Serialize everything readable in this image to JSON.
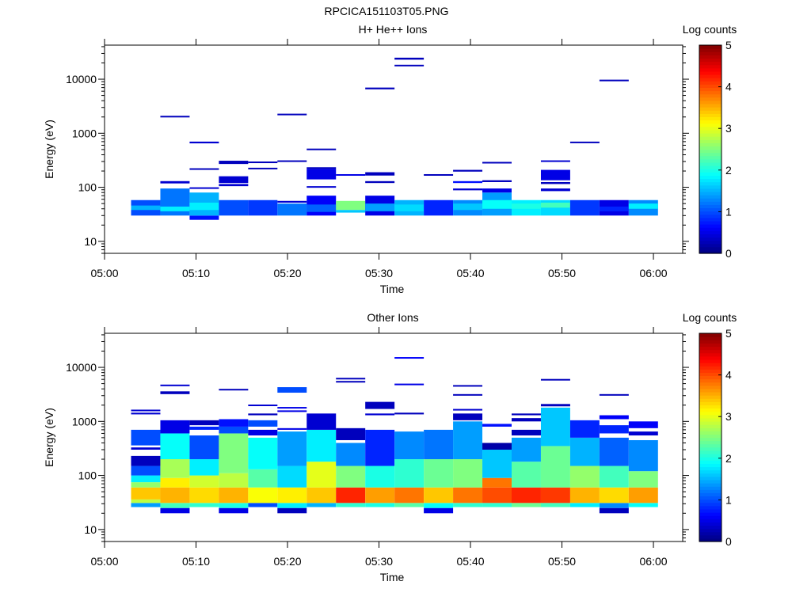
{
  "figure_title": "RPCICA151103T05.PNG",
  "chart_data": [
    {
      "type": "heatmap",
      "title": "H+ He++ Ions",
      "xlabel": "Time",
      "ylabel": "Energy (eV)",
      "colorbar_label": "Log counts",
      "colorbar_ticks": [
        "0",
        "1",
        "2",
        "3",
        "4",
        "5"
      ],
      "colorbar_range": [
        0,
        5
      ],
      "x_ticks": [
        "05:00",
        "05:10",
        "05:20",
        "05:30",
        "05:40",
        "05:50",
        "06:00"
      ],
      "x_range_minutes": [
        0,
        63.2
      ],
      "y_scale": "log",
      "y_ticks": [
        "10",
        "100",
        "1000",
        "10000"
      ],
      "y_range": [
        6,
        42700
      ],
      "column_width_minutes": 3.2,
      "column_start_minutes": 2.9,
      "columns": [
        [
          [
            30,
            58,
            1.0
          ],
          [
            38,
            46,
            1.5
          ]
        ],
        [
          [
            30,
            95,
            1.2
          ],
          [
            36,
            44,
            1.8
          ],
          [
            118,
            130,
            0.4
          ],
          [
            2000,
            2100,
            0.3
          ]
        ],
        [
          [
            25,
            30,
            0.7
          ],
          [
            30,
            80,
            1.5
          ],
          [
            38,
            52,
            1.8
          ],
          [
            95,
            100,
            0.4
          ],
          [
            215,
            225,
            0.3
          ],
          [
            650,
            700,
            0.4
          ]
        ],
        [
          [
            30,
            58,
            1.0
          ],
          [
            105,
            115,
            0.4
          ],
          [
            120,
            160,
            0.4
          ],
          [
            270,
            310,
            0.3
          ]
        ],
        [
          [
            30,
            58,
            0.9
          ],
          [
            220,
            230,
            0.3
          ],
          [
            280,
            300,
            0.3
          ]
        ],
        [
          [
            30,
            50,
            1.2
          ],
          [
            52,
            56,
            0.4
          ],
          [
            300,
            315,
            0.3
          ],
          [
            2150,
            2300,
            0.3
          ]
        ],
        [
          [
            30,
            70,
            0.6
          ],
          [
            35,
            48,
            1.1
          ],
          [
            100,
            105,
            0.4
          ],
          [
            140,
            220,
            0.5
          ],
          [
            225,
            235,
            0.3
          ],
          [
            500,
            520,
            0.3
          ]
        ],
        [
          [
            38,
            56,
            2.5
          ],
          [
            34,
            38,
            1.6
          ],
          [
            170,
            175,
            0.5
          ]
        ],
        [
          [
            30,
            70,
            0.5
          ],
          [
            36,
            50,
            1.4
          ],
          [
            120,
            130,
            0.3
          ],
          [
            165,
            190,
            0.3
          ],
          [
            6500,
            7000,
            0.3
          ]
        ],
        [
          [
            30,
            58,
            1.5
          ],
          [
            36,
            48,
            1.7
          ],
          [
            17500,
            18500,
            0.3
          ],
          [
            23000,
            25000,
            0.3
          ]
        ],
        [
          [
            30,
            58,
            0.8
          ],
          [
            170,
            175,
            0.3
          ]
        ],
        [
          [
            30,
            58,
            1.3
          ],
          [
            38,
            50,
            1.6
          ],
          [
            88,
            95,
            0.4
          ],
          [
            120,
            130,
            0.7
          ],
          [
            195,
            210,
            0.3
          ]
        ],
        [
          [
            30,
            80,
            1.4
          ],
          [
            40,
            58,
            1.9
          ],
          [
            80,
            95,
            0.5
          ],
          [
            125,
            135,
            0.3
          ],
          [
            280,
            295,
            0.3
          ]
        ],
        [
          [
            30,
            58,
            1.8
          ],
          [
            40,
            50,
            2.0
          ]
        ],
        [
          [
            30,
            58,
            1.7
          ],
          [
            42,
            52,
            2.2
          ],
          [
            85,
            95,
            0.4
          ],
          [
            115,
            125,
            0.3
          ],
          [
            135,
            210,
            0.5
          ],
          [
            300,
            315,
            0.4
          ]
        ],
        [
          [
            30,
            58,
            0.9
          ],
          [
            660,
            700,
            0.3
          ]
        ],
        [
          [
            30,
            58,
            0.5
          ],
          [
            36,
            44,
            0.8
          ],
          [
            9400,
            9800,
            0.3
          ]
        ],
        [
          [
            30,
            58,
            1.3
          ],
          [
            40,
            50,
            1.8
          ]
        ]
      ]
    },
    {
      "type": "heatmap",
      "title": "Other Ions",
      "xlabel": "Time",
      "ylabel": "Energy (eV)",
      "colorbar_label": "Log counts",
      "colorbar_ticks": [
        "0",
        "1",
        "2",
        "3",
        "4",
        "5"
      ],
      "colorbar_range": [
        0,
        5
      ],
      "x_ticks": [
        "05:00",
        "05:10",
        "05:20",
        "05:30",
        "05:40",
        "05:50",
        "06:00"
      ],
      "x_range_minutes": [
        0,
        63.2
      ],
      "y_scale": "log",
      "y_ticks": [
        "10",
        "100",
        "1000",
        "10000"
      ],
      "y_range": [
        6,
        42700
      ],
      "column_width_minutes": 3.2,
      "column_start_minutes": 2.9,
      "columns": [
        [
          [
            26,
            31,
            1.4
          ],
          [
            31,
            36,
            2.8
          ],
          [
            36,
            60,
            3.4
          ],
          [
            60,
            75,
            2.6
          ],
          [
            75,
            100,
            1.8
          ],
          [
            100,
            150,
            1.0
          ],
          [
            150,
            230,
            0.3
          ],
          [
            300,
            330,
            0.4
          ],
          [
            360,
            700,
            1.0
          ],
          [
            1350,
            1450,
            0.4
          ],
          [
            1550,
            1650,
            0.4
          ]
        ],
        [
          [
            20,
            25,
            0.5
          ],
          [
            25,
            31,
            2.2
          ],
          [
            31,
            60,
            3.5
          ],
          [
            60,
            90,
            3.2
          ],
          [
            90,
            200,
            2.7
          ],
          [
            200,
            600,
            1.9
          ],
          [
            600,
            1050,
            0.5
          ],
          [
            3200,
            3600,
            0.3
          ],
          [
            4500,
            4800,
            0.4
          ]
        ],
        [
          [
            26,
            31,
            2.1
          ],
          [
            31,
            60,
            3.3
          ],
          [
            60,
            100,
            2.9
          ],
          [
            100,
            200,
            1.8
          ],
          [
            200,
            550,
            1.0
          ],
          [
            700,
            800,
            0.8
          ],
          [
            850,
            1050,
            0.3
          ]
        ],
        [
          [
            20,
            25,
            0.5
          ],
          [
            25,
            31,
            2.0
          ],
          [
            31,
            60,
            3.5
          ],
          [
            60,
            110,
            2.8
          ],
          [
            110,
            600,
            2.5
          ],
          [
            600,
            800,
            1.0
          ],
          [
            800,
            1100,
            0.7
          ],
          [
            3800,
            4000,
            0.3
          ]
        ],
        [
          [
            26,
            31,
            1.0
          ],
          [
            31,
            60,
            3.1
          ],
          [
            60,
            130,
            2.3
          ],
          [
            130,
            500,
            1.9
          ],
          [
            550,
            700,
            0.5
          ],
          [
            800,
            1050,
            1.0
          ],
          [
            1300,
            1400,
            0.3
          ],
          [
            1950,
            2050,
            0.4
          ]
        ],
        [
          [
            20,
            25,
            0.3
          ],
          [
            25,
            31,
            1.8
          ],
          [
            31,
            60,
            3.2
          ],
          [
            60,
            150,
            1.7
          ],
          [
            150,
            650,
            1.4
          ],
          [
            700,
            750,
            0.5
          ],
          [
            1500,
            1600,
            0.5
          ],
          [
            1750,
            1850,
            0.5
          ],
          [
            3400,
            4300,
            1.0
          ]
        ],
        [
          [
            26,
            31,
            1.5
          ],
          [
            31,
            60,
            3.4
          ],
          [
            60,
            180,
            3.0
          ],
          [
            180,
            700,
            1.8
          ],
          [
            700,
            1400,
            0.4
          ]
        ],
        [
          [
            26,
            31,
            2.1
          ],
          [
            31,
            60,
            4.2
          ],
          [
            60,
            150,
            2.5
          ],
          [
            150,
            400,
            1.3
          ],
          [
            450,
            750,
            0.3
          ],
          [
            5300,
            5600,
            0.3
          ],
          [
            6000,
            6400,
            0.3
          ]
        ],
        [
          [
            26,
            31,
            2.0
          ],
          [
            31,
            60,
            3.6
          ],
          [
            60,
            150,
            2.0
          ],
          [
            150,
            700,
            0.8
          ],
          [
            1300,
            1400,
            0.4
          ],
          [
            1700,
            2300,
            0.3
          ]
        ],
        [
          [
            26,
            31,
            2.3
          ],
          [
            31,
            60,
            3.8
          ],
          [
            60,
            200,
            2.1
          ],
          [
            200,
            650,
            1.3
          ],
          [
            1350,
            1450,
            0.3
          ],
          [
            4700,
            5000,
            0.5
          ],
          [
            14800,
            15500,
            0.6
          ]
        ],
        [
          [
            20,
            25,
            0.5
          ],
          [
            25,
            31,
            1.9
          ],
          [
            31,
            60,
            3.4
          ],
          [
            60,
            200,
            2.4
          ],
          [
            200,
            700,
            1.2
          ]
        ],
        [
          [
            26,
            31,
            2.1
          ],
          [
            31,
            60,
            3.8
          ],
          [
            60,
            200,
            2.5
          ],
          [
            200,
            1000,
            1.4
          ],
          [
            1050,
            1400,
            0.3
          ],
          [
            1600,
            1700,
            0.4
          ],
          [
            3000,
            3200,
            0.3
          ],
          [
            4400,
            4700,
            0.3
          ]
        ],
        [
          [
            26,
            31,
            2.1
          ],
          [
            31,
            60,
            4.0
          ],
          [
            60,
            90,
            3.8
          ],
          [
            90,
            300,
            1.6
          ],
          [
            300,
            400,
            0.2
          ],
          [
            800,
            900,
            0.7
          ]
        ],
        [
          [
            26,
            31,
            2.4
          ],
          [
            31,
            60,
            4.2
          ],
          [
            60,
            180,
            2.3
          ],
          [
            180,
            500,
            1.4
          ],
          [
            550,
            700,
            0.3
          ],
          [
            1000,
            1150,
            0.3
          ],
          [
            1300,
            1400,
            0.3
          ]
        ],
        [
          [
            26,
            31,
            2.2
          ],
          [
            31,
            60,
            4.1
          ],
          [
            60,
            350,
            2.4
          ],
          [
            350,
            1800,
            1.6
          ],
          [
            1900,
            2100,
            0.3
          ],
          [
            5800,
            6100,
            0.3
          ]
        ],
        [
          [
            26,
            31,
            1.8
          ],
          [
            31,
            60,
            3.5
          ],
          [
            60,
            150,
            2.6
          ],
          [
            150,
            500,
            1.5
          ],
          [
            500,
            1050,
            0.8
          ]
        ],
        [
          [
            20,
            25,
            0.3
          ],
          [
            25,
            31,
            1.3
          ],
          [
            31,
            60,
            3.3
          ],
          [
            60,
            150,
            2.2
          ],
          [
            150,
            500,
            1.1
          ],
          [
            600,
            850,
            0.8
          ],
          [
            1100,
            1300,
            0.6
          ],
          [
            3000,
            3200,
            0.3
          ]
        ],
        [
          [
            26,
            31,
            1.9
          ],
          [
            31,
            60,
            3.6
          ],
          [
            60,
            120,
            2.5
          ],
          [
            120,
            450,
            1.3
          ],
          [
            550,
            650,
            0.4
          ],
          [
            750,
            1000,
            0.6
          ]
        ]
      ]
    }
  ]
}
